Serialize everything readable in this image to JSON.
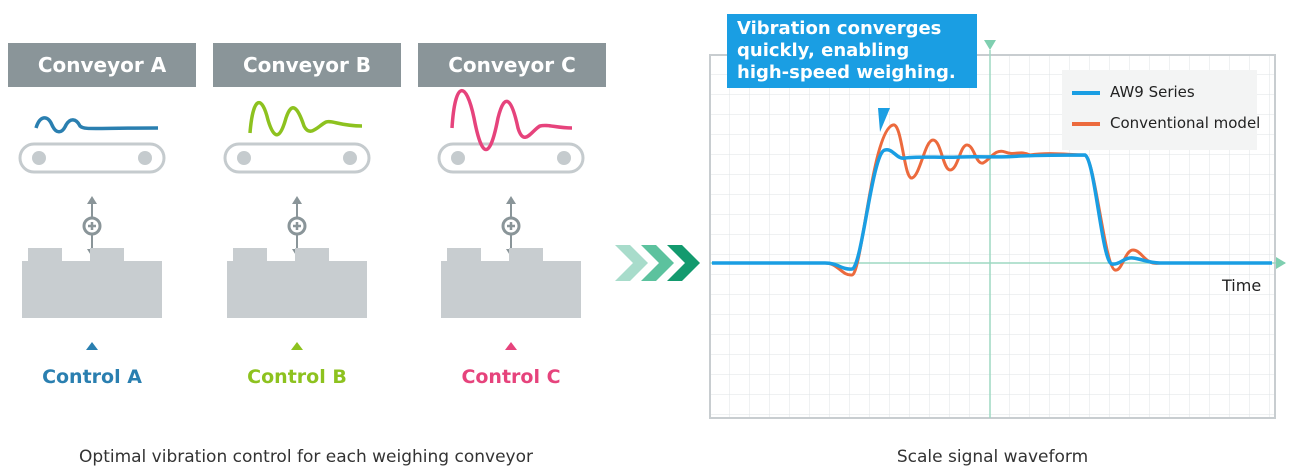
{
  "conveyors": [
    {
      "label": "Conveyor A",
      "control": "Control A"
    },
    {
      "label": "Conveyor B",
      "control": "Control B"
    },
    {
      "label": "Conveyor C",
      "control": "Control C"
    }
  ],
  "left_caption": "Optimal vibration control for each weighing conveyor",
  "waveform": {
    "callout": "Vibration converges quickly, enabling high-speed weighing.",
    "legend": [
      "AW9 Series",
      "Conventional model"
    ],
    "x_label": "Time",
    "caption": "Scale signal waveform"
  }
}
